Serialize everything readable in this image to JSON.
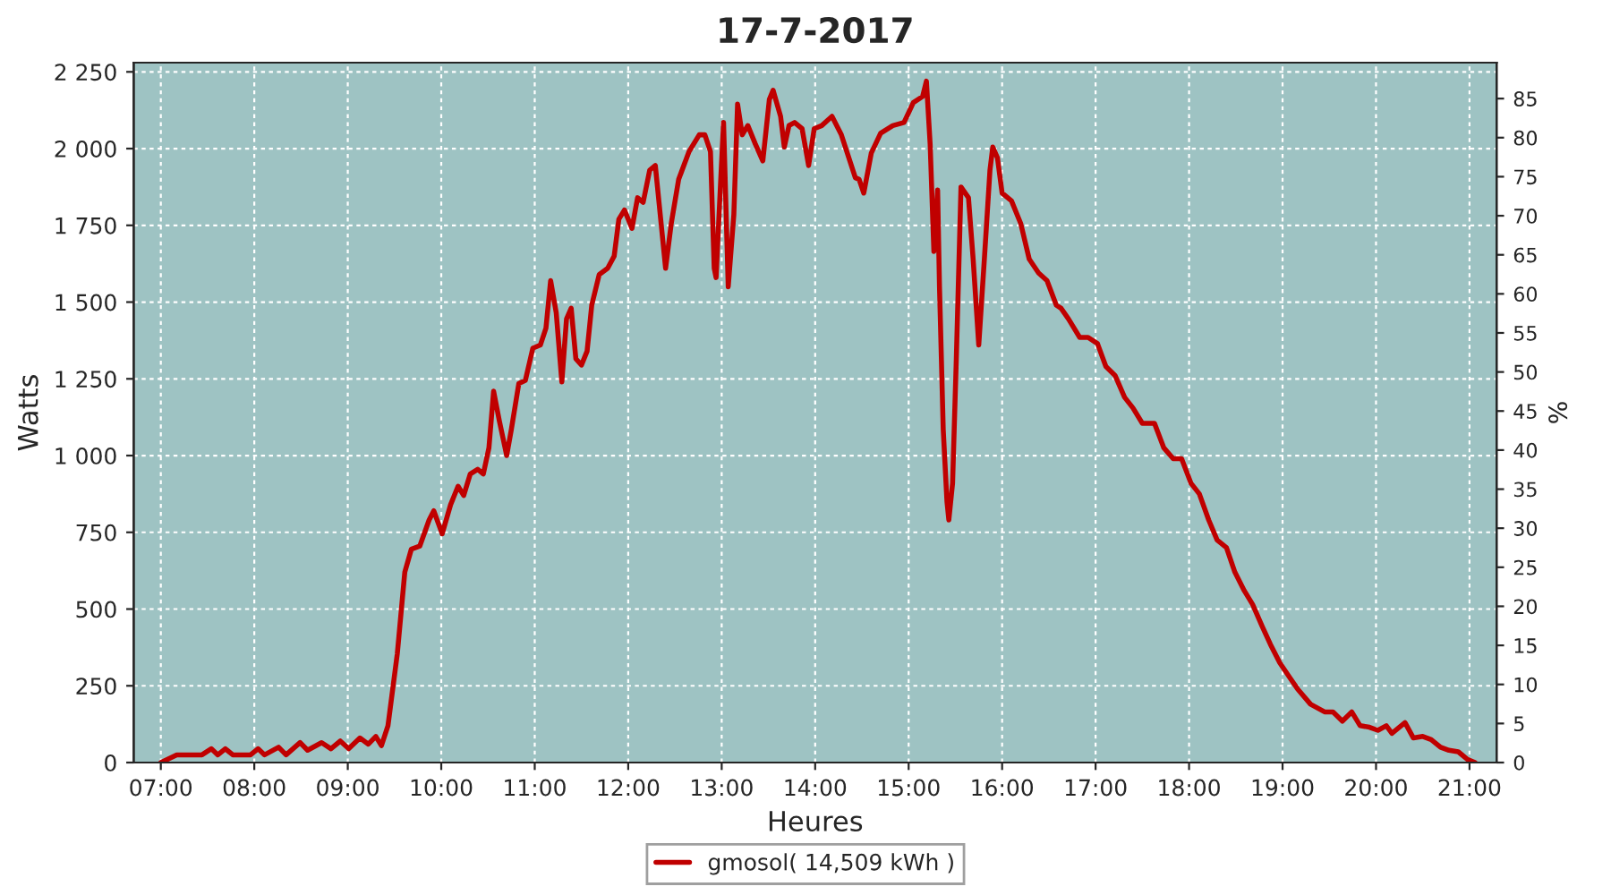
{
  "chart_data": {
    "type": "line",
    "title": "17-7-2017",
    "xlabel": "Heures",
    "ylabel": "Watts",
    "y2label": "%",
    "x": [
      7.0,
      7.17,
      7.44,
      7.54,
      7.61,
      7.69,
      7.77,
      7.96,
      8.04,
      8.11,
      8.26,
      8.34,
      8.49,
      8.57,
      8.72,
      8.82,
      8.92,
      9.01,
      9.13,
      9.22,
      9.3,
      9.36,
      9.43,
      9.53,
      9.61,
      9.68,
      9.77,
      9.87,
      9.92,
      10.01,
      10.1,
      10.18,
      10.24,
      10.31,
      10.39,
      10.45,
      10.51,
      10.56,
      10.62,
      10.7,
      10.75,
      10.83,
      10.9,
      10.98,
      11.06,
      11.12,
      11.17,
      11.23,
      11.29,
      11.34,
      11.39,
      11.44,
      11.5,
      11.56,
      11.61,
      11.69,
      11.78,
      11.85,
      11.9,
      11.96,
      12.04,
      12.1,
      12.16,
      12.23,
      12.29,
      12.4,
      12.46,
      12.54,
      12.65,
      12.76,
      12.82,
      12.88,
      12.92,
      12.94,
      12.99,
      13.02,
      13.07,
      13.13,
      13.17,
      13.22,
      13.28,
      13.36,
      13.44,
      13.51,
      13.55,
      13.63,
      13.67,
      13.72,
      13.78,
      13.86,
      13.93,
      13.99,
      14.07,
      14.18,
      14.28,
      14.43,
      14.47,
      14.52,
      14.6,
      14.7,
      14.83,
      14.95,
      15.05,
      15.15,
      15.19,
      15.23,
      15.27,
      15.31,
      15.33,
      15.37,
      15.41,
      15.43,
      15.47,
      15.51,
      15.56,
      15.64,
      15.69,
      15.75,
      15.81,
      15.87,
      15.9,
      15.95,
      16.0,
      16.1,
      16.2,
      16.29,
      16.39,
      16.48,
      16.58,
      16.63,
      16.71,
      16.83,
      16.92,
      17.02,
      17.11,
      17.21,
      17.31,
      17.4,
      17.5,
      17.63,
      17.73,
      17.83,
      17.92,
      18.02,
      18.11,
      18.21,
      18.3,
      18.4,
      18.49,
      18.59,
      18.68,
      18.78,
      18.87,
      18.97,
      19.07,
      19.16,
      19.3,
      19.45,
      19.54,
      19.64,
      19.74,
      19.83,
      19.93,
      20.02,
      20.11,
      20.17,
      20.31,
      20.4,
      20.5,
      20.59,
      20.69,
      20.78,
      20.88,
      20.98,
      21.06
    ],
    "series": [
      {
        "name": "gmosol( 14,509 kWh )",
        "color": "#c00000",
        "values": [
          0,
          25,
          25,
          45,
          25,
          45,
          25,
          25,
          45,
          25,
          50,
          25,
          65,
          40,
          65,
          45,
          70,
          45,
          80,
          60,
          85,
          55,
          120,
          355,
          620,
          695,
          705,
          790,
          820,
          745,
          840,
          900,
          870,
          940,
          955,
          940,
          1025,
          1210,
          1115,
          1000,
          1085,
          1235,
          1245,
          1350,
          1360,
          1415,
          1570,
          1465,
          1240,
          1445,
          1480,
          1315,
          1295,
          1340,
          1490,
          1590,
          1610,
          1650,
          1770,
          1800,
          1740,
          1840,
          1825,
          1930,
          1945,
          1610,
          1755,
          1900,
          1990,
          2045,
          2045,
          1990,
          1610,
          1580,
          1900,
          2085,
          1550,
          1785,
          2145,
          2045,
          2075,
          2015,
          1960,
          2160,
          2190,
          2105,
          2005,
          2075,
          2085,
          2065,
          1945,
          2065,
          2075,
          2105,
          2045,
          1905,
          1900,
          1855,
          1985,
          2050,
          2075,
          2085,
          2150,
          2170,
          2220,
          2015,
          1665,
          1865,
          1550,
          1085,
          850,
          790,
          910,
          1315,
          1875,
          1840,
          1640,
          1360,
          1640,
          1930,
          2005,
          1970,
          1855,
          1830,
          1755,
          1640,
          1595,
          1570,
          1490,
          1480,
          1445,
          1385,
          1385,
          1365,
          1290,
          1260,
          1190,
          1155,
          1105,
          1105,
          1025,
          990,
          990,
          910,
          875,
          790,
          725,
          700,
          620,
          560,
          515,
          445,
          385,
          325,
          280,
          240,
          190,
          165,
          165,
          135,
          165,
          120,
          115,
          105,
          120,
          95,
          130,
          80,
          85,
          75,
          50,
          40,
          35,
          10,
          0
        ]
      }
    ],
    "xlim": [
      6.71,
      21.29
    ],
    "xticks": [
      {
        "value": 7,
        "label": "07:00"
      },
      {
        "value": 8,
        "label": "08:00"
      },
      {
        "value": 9,
        "label": "09:00"
      },
      {
        "value": 10,
        "label": "10:00"
      },
      {
        "value": 11,
        "label": "11:00"
      },
      {
        "value": 12,
        "label": "12:00"
      },
      {
        "value": 13,
        "label": "13:00"
      },
      {
        "value": 14,
        "label": "14:00"
      },
      {
        "value": 15,
        "label": "15:00"
      },
      {
        "value": 16,
        "label": "16:00"
      },
      {
        "value": 17,
        "label": "17:00"
      },
      {
        "value": 18,
        "label": "18:00"
      },
      {
        "value": 19,
        "label": "19:00"
      },
      {
        "value": 20,
        "label": "20:00"
      },
      {
        "value": 21,
        "label": "21:00"
      }
    ],
    "ylim": [
      0,
      2280
    ],
    "yticks": [
      0,
      250,
      500,
      750,
      {
        "value": 1000,
        "label": "1 000"
      },
      {
        "value": 1250,
        "label": "1 250"
      },
      {
        "value": 1500,
        "label": "1 500"
      },
      {
        "value": 1750,
        "label": "1 750"
      },
      {
        "value": 2000,
        "label": "2 000"
      },
      {
        "value": 2250,
        "label": "2 250"
      }
    ],
    "y2lim": [
      0,
      89.6
    ],
    "y2ticks": [
      0,
      5,
      10,
      15,
      20,
      25,
      30,
      35,
      40,
      45,
      50,
      55,
      60,
      65,
      70,
      75,
      80,
      85
    ],
    "grid": true,
    "legend": "bottom",
    "marker": "none",
    "line_style": "solid"
  }
}
